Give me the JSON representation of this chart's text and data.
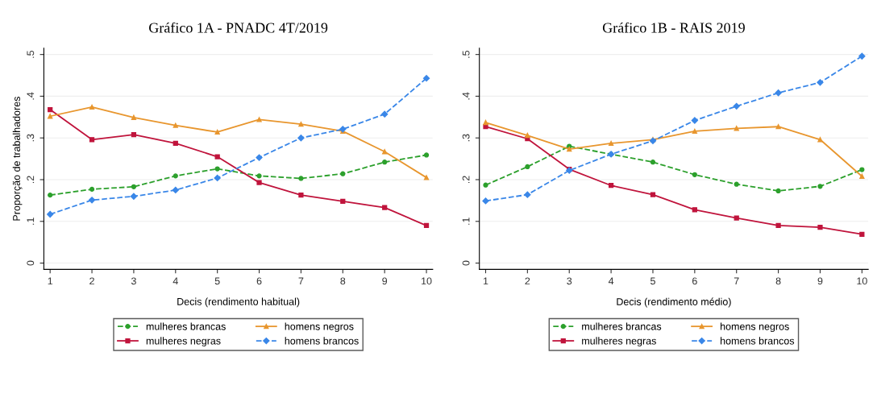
{
  "chart_data": [
    {
      "type": "line",
      "title": "Gráfico 1A - PNADC 4T/2019",
      "xlabel": "Decis (rendimento habitual)",
      "ylabel": "Proporção de trabalhadores",
      "x": [
        1,
        2,
        3,
        4,
        5,
        6,
        7,
        8,
        9,
        10
      ],
      "xlim": [
        0.85,
        10.15
      ],
      "xticks": [
        1,
        2,
        3,
        4,
        5,
        6,
        7,
        8,
        9,
        10
      ],
      "ylim": [
        -0.015,
        0.515
      ],
      "yticks": [
        {
          "value": 0,
          "label": "0"
        },
        {
          "value": 0.1,
          "label": ".1"
        },
        {
          "value": 0.2,
          "label": ".2"
        },
        {
          "value": 0.3,
          "label": ".3"
        },
        {
          "value": 0.4,
          "label": ".4"
        },
        {
          "value": 0.5,
          "label": ".5"
        }
      ],
      "grid": "y",
      "legend": "bottom",
      "series": [
        {
          "name": "mulheres brancas",
          "color": "#2ca02c",
          "marker": "circle",
          "line_style": "dashed",
          "values": [
            0.163,
            0.177,
            0.183,
            0.209,
            0.226,
            0.209,
            0.203,
            0.214,
            0.242,
            0.259
          ]
        },
        {
          "name": "mulheres negras",
          "color": "#c0143c",
          "marker": "square",
          "line_style": "solid",
          "values": [
            0.368,
            0.296,
            0.308,
            0.287,
            0.255,
            0.193,
            0.163,
            0.148,
            0.133,
            0.09
          ]
        },
        {
          "name": "homens negros",
          "color": "#e8962e",
          "marker": "triangle",
          "line_style": "solid",
          "values": [
            0.352,
            0.374,
            0.349,
            0.33,
            0.314,
            0.344,
            0.333,
            0.316,
            0.267,
            0.205
          ]
        },
        {
          "name": "homens brancos",
          "color": "#3a87e8",
          "marker": "diamond",
          "line_style": "dashed",
          "values": [
            0.117,
            0.151,
            0.16,
            0.175,
            0.204,
            0.253,
            0.3,
            0.321,
            0.357,
            0.443
          ]
        }
      ]
    },
    {
      "type": "line",
      "title": "Gráfico 1B - RAIS 2019",
      "xlabel": "Decis (rendimento médio)",
      "x": [
        1,
        2,
        3,
        4,
        5,
        6,
        7,
        8,
        9,
        10
      ],
      "xlim": [
        0.85,
        10.15
      ],
      "xticks": [
        1,
        2,
        3,
        4,
        5,
        6,
        7,
        8,
        9,
        10
      ],
      "ylim": [
        -0.015,
        0.515
      ],
      "yticks": [
        {
          "value": 0,
          "label": "0"
        },
        {
          "value": 0.1,
          "label": ".1"
        },
        {
          "value": 0.2,
          "label": ".2"
        },
        {
          "value": 0.3,
          "label": ".3"
        },
        {
          "value": 0.4,
          "label": ".4"
        },
        {
          "value": 0.5,
          "label": ".5"
        }
      ],
      "grid": "y",
      "legend": "bottom",
      "series": [
        {
          "name": "mulheres brancas",
          "color": "#2ca02c",
          "marker": "circle",
          "line_style": "dashed",
          "values": [
            0.187,
            0.231,
            0.28,
            0.261,
            0.242,
            0.212,
            0.189,
            0.173,
            0.184,
            0.224
          ]
        },
        {
          "name": "mulheres negras",
          "color": "#c0143c",
          "marker": "square",
          "line_style": "solid",
          "values": [
            0.327,
            0.298,
            0.225,
            0.186,
            0.164,
            0.128,
            0.108,
            0.09,
            0.086,
            0.069
          ]
        },
        {
          "name": "homens negros",
          "color": "#e8962e",
          "marker": "triangle",
          "line_style": "solid",
          "values": [
            0.337,
            0.306,
            0.273,
            0.287,
            0.296,
            0.316,
            0.323,
            0.327,
            0.296,
            0.208
          ]
        },
        {
          "name": "homens brancos",
          "color": "#3a87e8",
          "marker": "diamond",
          "line_style": "dashed",
          "values": [
            0.149,
            0.164,
            0.222,
            0.261,
            0.293,
            0.342,
            0.376,
            0.408,
            0.433,
            0.496
          ]
        }
      ]
    }
  ]
}
